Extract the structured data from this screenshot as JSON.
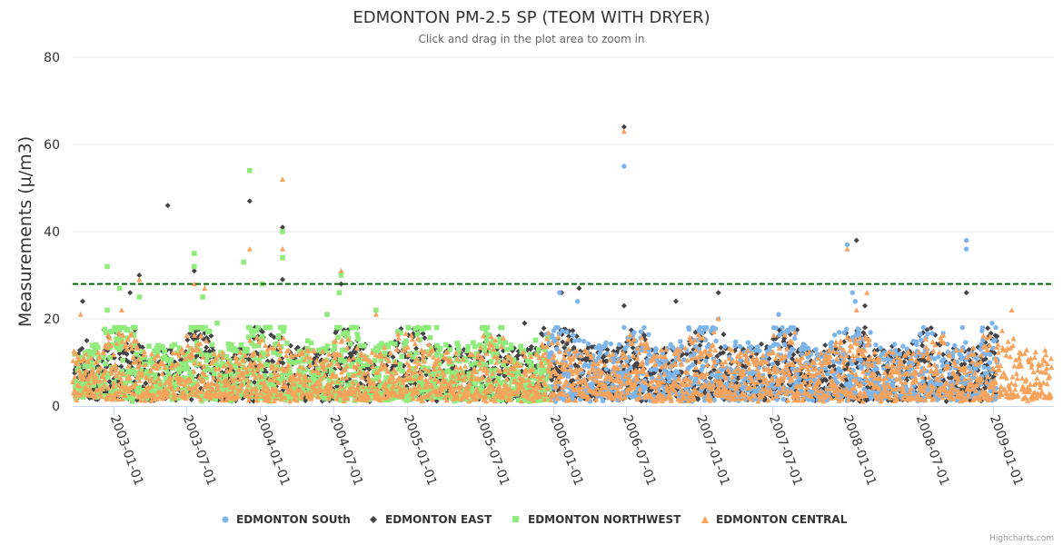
{
  "chart_data": {
    "type": "scatter",
    "title": "EDMONTON PM-2.5 SP (TEOM WITH DRYER)",
    "subtitle": "Click and drag in the plot area to zoom in",
    "ylabel": "Measurements (µ/m3)",
    "xlabel": "",
    "ylim": [
      0,
      80
    ],
    "yticks": [
      0,
      20,
      40,
      60,
      80
    ],
    "x_range": [
      "2002-09-20",
      "2009-05-31"
    ],
    "xticks": [
      "2003-01-01",
      "2003-07-01",
      "2004-01-01",
      "2004-07-01",
      "2005-01-01",
      "2005-07-01",
      "2006-01-01",
      "2006-07-01",
      "2007-01-01",
      "2007-07-01",
      "2008-01-01",
      "2008-07-01",
      "2009-01-01"
    ],
    "threshold": {
      "value": 28,
      "color": "#006400",
      "style": "dashed"
    },
    "legend_position": "bottom-center",
    "series": [
      {
        "name": "EDMONTON SOUth",
        "color": "#7cb5ec",
        "marker": "circle",
        "start": "2005-12-10",
        "end": "2009-01-10",
        "typical_range": [
          1,
          14
        ],
        "outliers": [
          {
            "date": "2006-06-25",
            "value": 55
          },
          {
            "date": "2008-01-15",
            "value": 26
          },
          {
            "date": "2008-01-02",
            "value": 37
          },
          {
            "date": "2008-10-25",
            "value": 38
          },
          {
            "date": "2008-10-25",
            "value": 36
          },
          {
            "date": "2007-07-15",
            "value": 21
          },
          {
            "date": "2008-01-22",
            "value": 24
          },
          {
            "date": "2006-03-01",
            "value": 24
          },
          {
            "date": "2006-01-15",
            "value": 26
          },
          {
            "date": "2006-06-25",
            "value": 18
          },
          {
            "date": "2008-10-15",
            "value": 18
          },
          {
            "date": "2008-12-28",
            "value": 19
          },
          {
            "date": "2007-02-15",
            "value": 20
          }
        ]
      },
      {
        "name": "EDMONTON EAST",
        "color": "#434348",
        "marker": "diamond",
        "start": "2002-09-25",
        "end": "2009-01-10",
        "typical_range": [
          1,
          13
        ],
        "outliers": [
          {
            "date": "2003-05-15",
            "value": 46
          },
          {
            "date": "2003-12-05",
            "value": 47
          },
          {
            "date": "2004-02-25",
            "value": 41
          },
          {
            "date": "2004-02-25",
            "value": 29
          },
          {
            "date": "2006-06-25",
            "value": 64
          },
          {
            "date": "2008-01-25",
            "value": 38
          },
          {
            "date": "2002-10-15",
            "value": 24
          },
          {
            "date": "2003-03-05",
            "value": 30
          },
          {
            "date": "2003-02-10",
            "value": 26
          },
          {
            "date": "2003-07-20",
            "value": 31
          },
          {
            "date": "2004-07-20",
            "value": 28
          },
          {
            "date": "2006-01-20",
            "value": 26
          },
          {
            "date": "2006-03-05",
            "value": 27
          },
          {
            "date": "2006-06-25",
            "value": 23
          },
          {
            "date": "2006-11-01",
            "value": 24
          },
          {
            "date": "2007-02-15",
            "value": 26
          },
          {
            "date": "2008-10-25",
            "value": 26
          },
          {
            "date": "2008-02-15",
            "value": 23
          },
          {
            "date": "2005-10-20",
            "value": 19
          },
          {
            "date": "2002-10-25",
            "value": 15
          }
        ]
      },
      {
        "name": "EDMONTON NORTHWEST",
        "color": "#90ed7d",
        "marker": "square",
        "start": "2002-09-25",
        "end": "2005-12-20",
        "typical_range": [
          1,
          14
        ],
        "outliers": [
          {
            "date": "2003-12-05",
            "value": 54
          },
          {
            "date": "2003-07-20",
            "value": 35
          },
          {
            "date": "2003-07-20",
            "value": 32
          },
          {
            "date": "2002-12-15",
            "value": 32
          },
          {
            "date": "2003-11-20",
            "value": 33
          },
          {
            "date": "2004-02-25",
            "value": 40
          },
          {
            "date": "2004-02-25",
            "value": 34
          },
          {
            "date": "2004-07-20",
            "value": 30
          },
          {
            "date": "2004-07-15",
            "value": 26
          },
          {
            "date": "2003-01-15",
            "value": 27
          },
          {
            "date": "2003-03-05",
            "value": 25
          },
          {
            "date": "2003-08-10",
            "value": 25
          },
          {
            "date": "2004-01-05",
            "value": 28
          },
          {
            "date": "2004-10-15",
            "value": 22
          },
          {
            "date": "2002-12-15",
            "value": 22
          },
          {
            "date": "2003-09-15",
            "value": 19
          },
          {
            "date": "2004-06-15",
            "value": 21
          },
          {
            "date": "2005-03-15",
            "value": 18
          }
        ]
      },
      {
        "name": "EDMONTON CENTRAL",
        "color": "#f7a35c",
        "marker": "triangle",
        "start": "2002-09-20",
        "end": "2009-05-25",
        "typical_range": [
          1,
          12
        ],
        "outliers": [
          {
            "date": "2004-02-25",
            "value": 52
          },
          {
            "date": "2003-12-05",
            "value": 36
          },
          {
            "date": "2004-02-25",
            "value": 36
          },
          {
            "date": "2006-06-25",
            "value": 63
          },
          {
            "date": "2008-01-02",
            "value": 36
          },
          {
            "date": "2004-07-20",
            "value": 31
          },
          {
            "date": "2003-03-05",
            "value": 29
          },
          {
            "date": "2003-08-15",
            "value": 27
          },
          {
            "date": "2003-07-20",
            "value": 28
          },
          {
            "date": "2008-02-20",
            "value": 26
          },
          {
            "date": "2008-01-25",
            "value": 22
          },
          {
            "date": "2009-02-15",
            "value": 22
          },
          {
            "date": "2002-10-10",
            "value": 21
          },
          {
            "date": "2003-01-20",
            "value": 22
          },
          {
            "date": "2004-10-15",
            "value": 21
          },
          {
            "date": "2007-02-15",
            "value": 20
          }
        ]
      }
    ]
  },
  "credits": "Highcharts.com"
}
